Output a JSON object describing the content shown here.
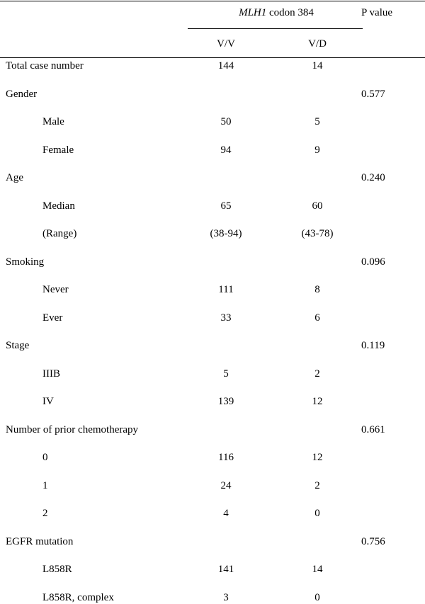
{
  "table": {
    "header": {
      "group": {
        "gene": "MLH1",
        "rest": "codon 384"
      },
      "p_value": "P value",
      "columns": [
        "V/V",
        "V/D"
      ]
    },
    "rows": [
      {
        "label": "Total case number",
        "vv": "144",
        "vd": "14"
      },
      {
        "label": "Gender",
        "p": "0.577"
      },
      {
        "label": "Male",
        "sub": true,
        "vv": "50",
        "vd": "5"
      },
      {
        "label": "Female",
        "sub": true,
        "vv": "94",
        "vd": "9"
      },
      {
        "label": "Age",
        "p": "0.240"
      },
      {
        "label": "Median",
        "sub": true,
        "vv": "65",
        "vd": "60"
      },
      {
        "label": "(Range)",
        "sub": true,
        "vv": "(38-94)",
        "vd": "(43-78)"
      },
      {
        "label": "Smoking",
        "p": "0.096"
      },
      {
        "label": "Never",
        "sub": true,
        "vv": "111",
        "vd": "8"
      },
      {
        "label": "Ever",
        "sub": true,
        "vv": "33",
        "vd": "6"
      },
      {
        "label": "Stage",
        "p": "0.119"
      },
      {
        "label": "IIIB",
        "sub": true,
        "vv": "5",
        "vd": "2"
      },
      {
        "label": "IV",
        "sub": true,
        "vv": "139",
        "vd": "12"
      },
      {
        "label": "Number of prior chemotherapy",
        "p": "0.661"
      },
      {
        "label": "0",
        "sub": true,
        "vv": "116",
        "vd": "12"
      },
      {
        "label": "1",
        "sub": true,
        "vv": "24",
        "vd": "2"
      },
      {
        "label": "2",
        "sub": true,
        "vv": "4",
        "vd": "0"
      },
      {
        "label": "EGFR mutation",
        "p": "0.756"
      },
      {
        "label": "L858R",
        "sub": true,
        "vv": "141",
        "vd": "14"
      },
      {
        "label": "L858R, complex",
        "sub": true,
        "vv": "3",
        "vd": "0"
      }
    ]
  }
}
